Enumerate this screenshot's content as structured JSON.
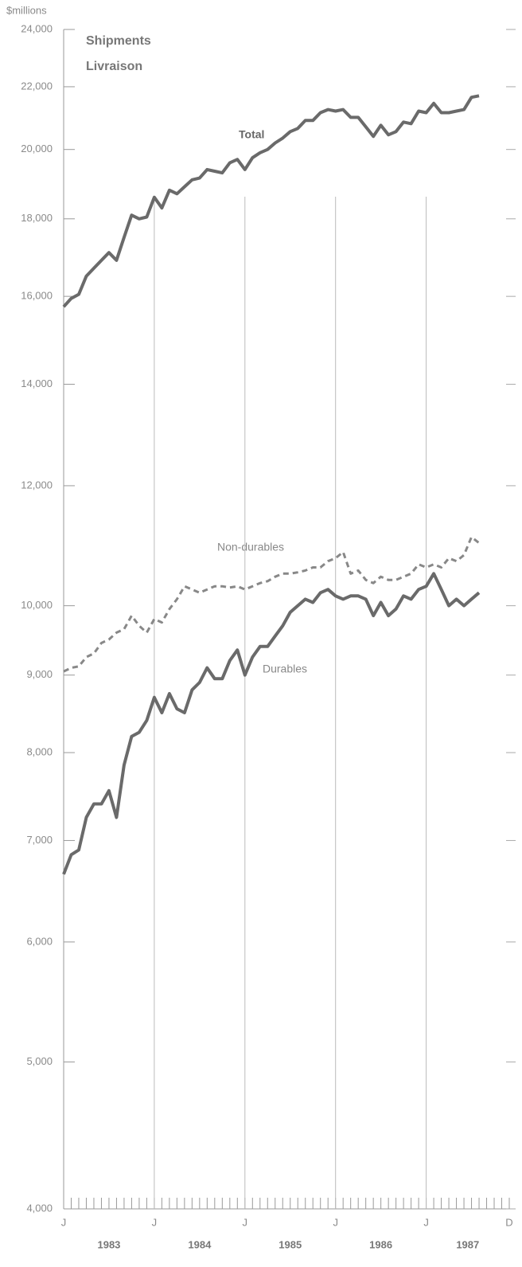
{
  "chart_data": {
    "type": "line",
    "title": "Shipments",
    "subtitle": "Livraison",
    "y_label": "$millions",
    "log_y": true,
    "ylim": [
      4000,
      24000
    ],
    "yticks": [
      {
        "value": 4000,
        "label": "4,000"
      },
      {
        "value": 5000,
        "label": "5,000"
      },
      {
        "value": 6000,
        "label": "6,000"
      },
      {
        "value": 7000,
        "label": "7,000"
      },
      {
        "value": 8000,
        "label": "8,000"
      },
      {
        "value": 9000,
        "label": "9,000"
      },
      {
        "value": 10000,
        "label": "10,000"
      },
      {
        "value": 12000,
        "label": "12,000"
      },
      {
        "value": 14000,
        "label": "14,000"
      },
      {
        "value": 16000,
        "label": "16,000"
      },
      {
        "value": 18000,
        "label": "18,000"
      },
      {
        "value": 20000,
        "label": "20,000"
      },
      {
        "value": 22000,
        "label": "22,000"
      },
      {
        "value": 24000,
        "label": "24,000"
      }
    ],
    "categories": [
      "J",
      null,
      null,
      null,
      null,
      null,
      null,
      null,
      null,
      null,
      null,
      null,
      "J",
      null,
      null,
      null,
      null,
      null,
      null,
      null,
      null,
      null,
      null,
      null,
      "J",
      null,
      null,
      null,
      null,
      null,
      null,
      null,
      null,
      null,
      null,
      null,
      "J",
      null,
      null,
      null,
      null,
      null,
      null,
      null,
      null,
      null,
      null,
      null,
      "J",
      null,
      null,
      null,
      null,
      null,
      null,
      null,
      null,
      null,
      null,
      "D"
    ],
    "year_labels": [
      "1983",
      "1984",
      "1985",
      "1986",
      "1987"
    ],
    "series": [
      {
        "name": "Total",
        "color": "#6a6a6a",
        "dashed": false,
        "values": [
          15750,
          15950,
          16050,
          16500,
          16700,
          16900,
          17100,
          16900,
          17500,
          18100,
          18000,
          18050,
          18600,
          18300,
          18800,
          18700,
          18900,
          19100,
          19150,
          19400,
          19350,
          19300,
          19600,
          19700,
          19400,
          19750,
          19900,
          20000,
          20200,
          20350,
          20550,
          20650,
          20900,
          20900,
          21150,
          21250,
          21200,
          21250,
          21000,
          21000,
          20700,
          20400,
          20750,
          20450,
          20550,
          20850,
          20800,
          21200,
          21150,
          21450,
          21150,
          21150,
          21200,
          21250,
          21650,
          21700,
          null,
          null,
          null,
          null
        ]
      },
      {
        "name": "Non-durables",
        "color": "#888888",
        "dashed": true,
        "values": [
          9050,
          9100,
          9120,
          9250,
          9300,
          9450,
          9500,
          9600,
          9650,
          9850,
          9700,
          9600,
          9800,
          9750,
          9950,
          10100,
          10300,
          10250,
          10200,
          10250,
          10300,
          10300,
          10280,
          10300,
          10250,
          10300,
          10350,
          10380,
          10450,
          10500,
          10500,
          10520,
          10550,
          10600,
          10600,
          10700,
          10750,
          10850,
          10500,
          10550,
          10400,
          10350,
          10450,
          10400,
          10400,
          10450,
          10500,
          10650,
          10600,
          10650,
          10600,
          10750,
          10700,
          10800,
          11100,
          11000,
          null,
          null,
          null,
          null
        ]
      },
      {
        "name": "Durables",
        "color": "#6a6a6a",
        "dashed": false,
        "values": [
          6650,
          6850,
          6900,
          7250,
          7400,
          7400,
          7550,
          7250,
          7850,
          8200,
          8250,
          8400,
          8700,
          8500,
          8750,
          8550,
          8500,
          8800,
          8900,
          9100,
          8950,
          8950,
          9200,
          9350,
          9000,
          9250,
          9400,
          9400,
          9550,
          9700,
          9900,
          10000,
          10100,
          10050,
          10200,
          10250,
          10150,
          10100,
          10150,
          10150,
          10100,
          9850,
          10050,
          9850,
          9950,
          10150,
          10100,
          10250,
          10300,
          10500,
          10250,
          10000,
          10100,
          10000,
          10100,
          10200,
          null,
          null,
          null,
          null
        ]
      }
    ]
  }
}
